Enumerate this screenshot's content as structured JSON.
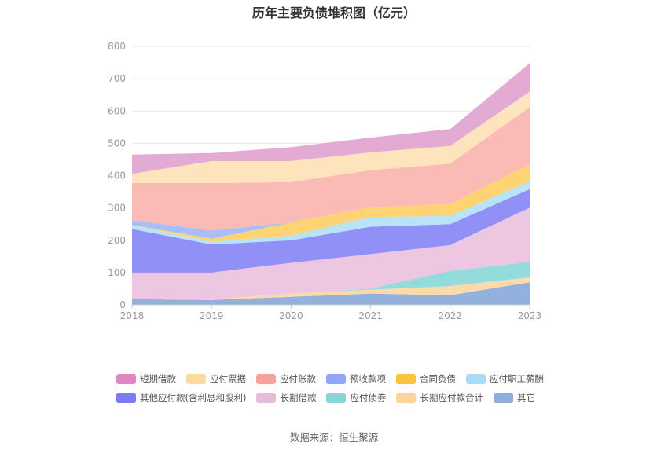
{
  "title": "历年主要负债堆积图（亿元）",
  "source": "数据来源：恒生聚源",
  "chart_data": {
    "type": "area",
    "stacked": true,
    "x": [
      "2018",
      "2019",
      "2020",
      "2021",
      "2022",
      "2023"
    ],
    "ylim": [
      0,
      800
    ],
    "yticks": [
      "0",
      "100",
      "200",
      "300",
      "400",
      "500",
      "600",
      "700",
      "800"
    ],
    "grid": true,
    "legend_position": "bottom",
    "series": [
      {
        "name": "其它",
        "color": "#8eaddc",
        "values": [
          18,
          15,
          25,
          35,
          30,
          70
        ]
      },
      {
        "name": "长期应付款合计",
        "color": "#fcd9a5",
        "values": [
          0,
          2,
          10,
          12,
          28,
          15
        ]
      },
      {
        "name": "应付债券",
        "color": "#8ed9d9",
        "values": [
          0,
          0,
          0,
          3,
          47,
          48
        ]
      },
      {
        "name": "长期借款",
        "color": "#ecc4e0",
        "values": [
          82,
          83,
          95,
          107,
          80,
          168
        ]
      },
      {
        "name": "其他应付款(含利息和股利)",
        "color": "#8a8af7",
        "values": [
          135,
          87,
          70,
          85,
          65,
          57
        ]
      },
      {
        "name": "应付职工薪酬",
        "color": "#b5e3f7",
        "values": [
          12,
          8,
          15,
          30,
          25,
          25
        ]
      },
      {
        "name": "合同负债",
        "color": "#fdd16b",
        "values": [
          0,
          10,
          40,
          30,
          37,
          52
        ]
      },
      {
        "name": "预收款项",
        "color": "#a4baf8",
        "values": [
          15,
          25,
          0,
          0,
          0,
          0
        ]
      },
      {
        "name": "应付账款",
        "color": "#f9b7b0",
        "values": [
          115,
          147,
          125,
          115,
          125,
          177
        ]
      },
      {
        "name": "应付票据",
        "color": "#fde3b8",
        "values": [
          28,
          68,
          65,
          55,
          55,
          48
        ]
      },
      {
        "name": "短期借款",
        "color": "#e1a7d1",
        "values": [
          60,
          25,
          43,
          46,
          52,
          88
        ]
      }
    ]
  },
  "legend": [
    [
      {
        "label": "短期借款",
        "color": "#dd88c4"
      },
      {
        "label": "应付票据",
        "color": "#fdd9a0"
      },
      {
        "label": "应付账款",
        "color": "#f6a39b"
      },
      {
        "label": "预收款项",
        "color": "#8da8f5"
      },
      {
        "label": "合同负债",
        "color": "#fbc23b"
      },
      {
        "label": "应付职工薪酬",
        "color": "#a8dcf7"
      }
    ],
    [
      {
        "label": "其他应付款(含利息和股利)",
        "color": "#7a7af5"
      },
      {
        "label": "长期借款",
        "color": "#e8bbda"
      },
      {
        "label": "应付债券",
        "color": "#86d6d6"
      },
      {
        "label": "长期应付款合计",
        "color": "#fcd49c"
      },
      {
        "label": "其它",
        "color": "#8faedd"
      }
    ]
  ]
}
